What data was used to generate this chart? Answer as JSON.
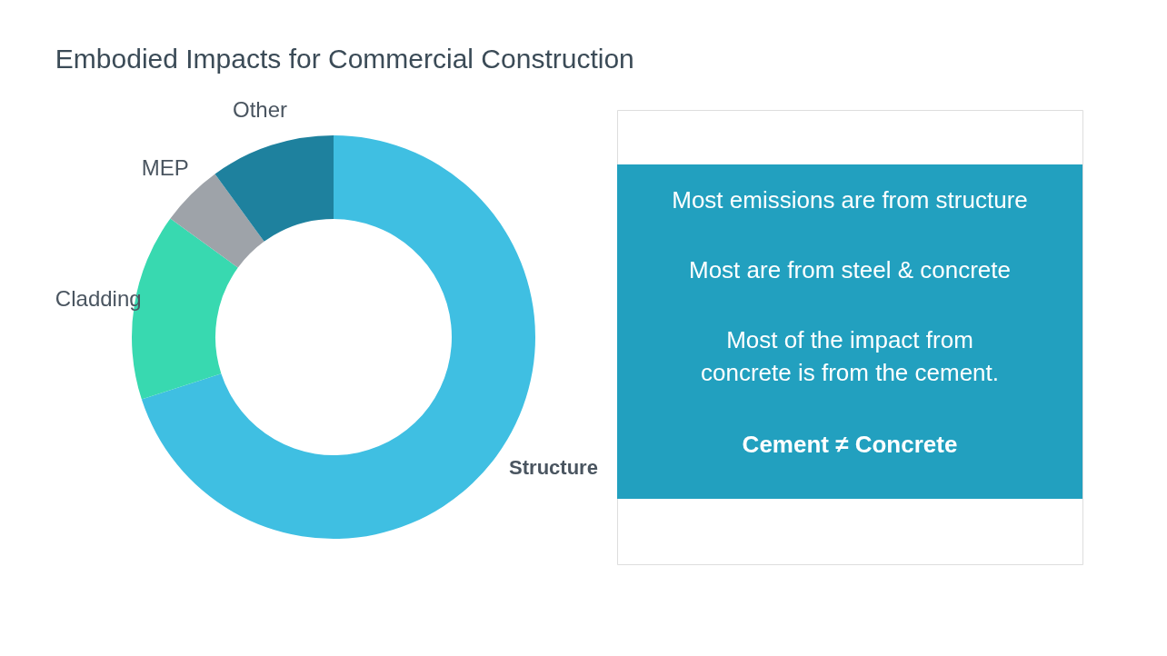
{
  "chart_data": [
    {
      "type": "donut",
      "title": "Embodied Impacts for Commercial Construction",
      "categories": [
        "Structure",
        "Cladding",
        "MEP",
        "Other"
      ],
      "values": [
        70,
        15,
        5,
        10
      ],
      "colors": [
        "#3fbfe2",
        "#38d9b0",
        "#9ea3a9",
        "#1e819e"
      ],
      "legend": false
    },
    {
      "type": "other",
      "color": "#22a0bf",
      "annotations": [
        "Most emissions are from structure",
        "Most are from steel & concrete",
        "Most of the impact from\nconcrete is from the cement.",
        "Cement ≠ Concrete"
      ]
    }
  ]
}
